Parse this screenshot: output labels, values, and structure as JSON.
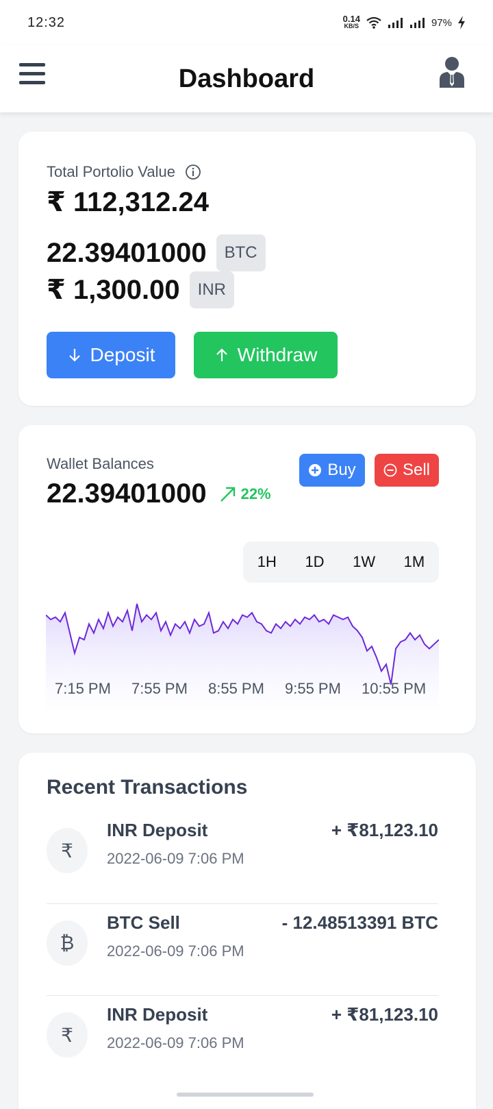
{
  "status_bar": {
    "time": "12:32",
    "net_speed_value": "0.14",
    "net_speed_unit": "KB/S",
    "battery": "97%"
  },
  "header": {
    "title": "Dashboard",
    "menu_icon": "hamburger-icon",
    "profile_icon": "user-avatar-icon"
  },
  "portfolio": {
    "label": "Total Portolio Value",
    "value": "₹ 112,312.24",
    "balances": [
      {
        "amount": "22.39401000",
        "currency": "BTC"
      },
      {
        "amount": "₹ 1,300.00",
        "currency": "INR"
      }
    ],
    "deposit_label": "Deposit",
    "withdraw_label": "Withdraw",
    "colors": {
      "deposit": "#3b82f6",
      "withdraw": "#22c55e"
    }
  },
  "wallet": {
    "label": "Wallet Balances",
    "amount": "22.39401000",
    "change": "22%",
    "buy_label": "Buy",
    "sell_label": "Sell",
    "ranges": [
      "1H",
      "1D",
      "1W",
      "1M"
    ],
    "colors": {
      "buy": "#3b82f6",
      "sell": "#ef4444",
      "line": "#6d28d9"
    }
  },
  "chart_data": {
    "type": "area",
    "x_ticks": [
      "7:15 PM",
      "7:55 PM",
      "8:55 PM",
      "9:55 PM",
      "10:55 PM"
    ],
    "values": [
      86,
      82,
      84,
      80,
      88,
      70,
      52,
      66,
      64,
      78,
      70,
      82,
      74,
      88,
      76,
      84,
      80,
      90,
      72,
      96,
      80,
      86,
      82,
      88,
      72,
      80,
      68,
      78,
      74,
      80,
      70,
      82,
      76,
      78,
      88,
      70,
      72,
      80,
      74,
      82,
      78,
      86,
      84,
      88,
      80,
      78,
      72,
      70,
      78,
      74,
      80,
      76,
      82,
      78,
      84,
      82,
      86,
      80,
      82,
      78,
      86,
      84,
      82,
      84,
      76,
      72,
      66,
      54,
      58,
      48,
      36,
      42,
      24,
      56,
      62,
      64,
      70,
      64,
      68,
      60,
      56,
      60,
      64
    ],
    "ylim": [
      0,
      110
    ],
    "grid": false
  },
  "transactions": {
    "title": "Recent Transactions",
    "items": [
      {
        "icon": "rupee-icon",
        "glyph": "₹",
        "name": "INR Deposit",
        "date": "2022-06-09 7:06 PM",
        "amount": "+ ₹81,123.10"
      },
      {
        "icon": "bitcoin-icon",
        "glyph": "₿",
        "name": "BTC Sell",
        "date": "2022-06-09 7:06 PM",
        "amount": "- 12.48513391 BTC"
      },
      {
        "icon": "rupee-icon",
        "glyph": "₹",
        "name": "INR Deposit",
        "date": "2022-06-09 7:06 PM",
        "amount": "+ ₹81,123.10"
      }
    ]
  }
}
